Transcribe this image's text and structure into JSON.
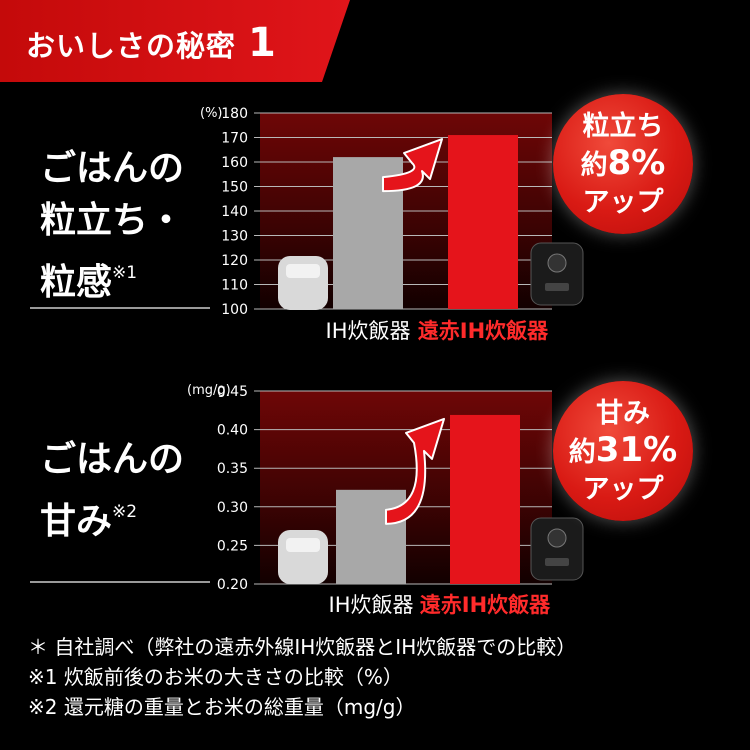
{
  "banner": {
    "title": "おいしさの秘密",
    "number": "1"
  },
  "colors": {
    "accent": "#d81c12",
    "bar_grey": "#a8a8a8",
    "bar_red": "#e5141b",
    "label_red": "#ff2b2b"
  },
  "chart1": {
    "label_line1": "ごはんの",
    "label_line2": "粒立ち・",
    "label_line3": "粒感",
    "label_note": "※1",
    "bubble_top": "粒立ち",
    "bubble_mid_prefix": "約",
    "bubble_mid_value": "8%",
    "bubble_bot": "アップ"
  },
  "chart2": {
    "label_line1": "ごはんの",
    "label_line2": "甘み",
    "label_note": "※2",
    "bubble_top": "甘み",
    "bubble_mid_prefix": "約",
    "bubble_mid_value": "31%",
    "bubble_bot": "アップ"
  },
  "chart_data": [
    {
      "type": "bar",
      "categories": [
        "IH炊飯器",
        "遠赤IH炊飯器"
      ],
      "values": [
        162,
        171
      ],
      "ylabel": "(%)",
      "ylim": [
        100,
        180
      ],
      "yticks": [
        "100",
        "110",
        "120",
        "130",
        "140",
        "150",
        "160",
        "170",
        "180"
      ],
      "grid": true
    },
    {
      "type": "bar",
      "categories": [
        "IH炊飯器",
        "遠赤IH炊飯器"
      ],
      "values": [
        0.322,
        0.419
      ],
      "ylabel": "(mg/g)",
      "ylim": [
        0.2,
        0.45
      ],
      "yticks": [
        "0.20",
        "0.25",
        "0.30",
        "0.35",
        "0.40",
        "0.45"
      ],
      "grid": true
    }
  ],
  "footnotes": {
    "note0": "＊ 自社調べ（弊社の遠赤外線IH炊飯器とIH炊飯器での比較）",
    "note1": "※1 炊飯前後のお米の大きさの比較（%）",
    "note2": "※2 還元糖の重量とお米の総重量（mg/g）"
  }
}
